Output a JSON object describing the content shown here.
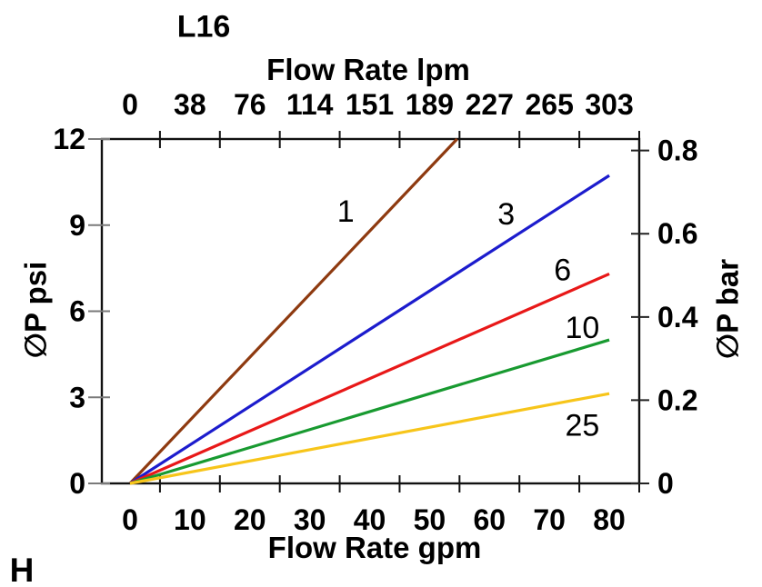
{
  "title": "L16",
  "footer_label": "H",
  "chart_data": {
    "type": "line",
    "title": "L16",
    "grid": false,
    "legend": "inline-labels-on-lines",
    "top_axis": {
      "label": "Flow Rate lpm",
      "tick_labels_lpm": [
        0,
        38,
        76,
        114,
        151,
        189,
        227,
        265,
        303
      ],
      "tick_label_positions_gpm": [
        0,
        10,
        20,
        30,
        40,
        50,
        60,
        70,
        80
      ]
    },
    "bottom_axis": {
      "label": "Flow Rate gpm",
      "tick_labels_gpm": [
        0,
        10,
        20,
        30,
        40,
        50,
        60,
        70,
        80
      ]
    },
    "left_axis": {
      "label": "∅P psi",
      "ticks_psi": [
        0,
        3,
        6,
        9,
        12
      ],
      "range_psi": [
        0,
        12
      ]
    },
    "right_axis": {
      "label": "∅P bar",
      "ticks_bar": [
        0,
        0.2,
        0.4,
        0.6,
        0.8
      ],
      "psi_per_bar": 14.5
    },
    "x_range_gpm": [
      -4.7,
      85
    ],
    "tick_mark_positions_gpm": [
      5,
      15,
      25,
      35,
      45,
      55,
      65,
      75,
      85
    ],
    "series": [
      {
        "name": "1",
        "color": "#8e3a10",
        "points_gpm_psi": [
          [
            0,
            0
          ],
          [
            54.6,
            12
          ]
        ],
        "label_at_gpm_psi": [
          36.0,
          9.5
        ]
      },
      {
        "name": "3",
        "color": "#1c1ccd",
        "points_gpm_psi": [
          [
            0,
            0
          ],
          [
            80,
            10.73
          ]
        ],
        "label_at_gpm_psi": [
          62.8,
          9.4
        ]
      },
      {
        "name": "6",
        "color": "#e81818",
        "points_gpm_psi": [
          [
            0,
            0
          ],
          [
            80,
            7.3
          ]
        ],
        "label_at_gpm_psi": [
          72.2,
          7.45
        ]
      },
      {
        "name": "10",
        "color": "#189a30",
        "points_gpm_psi": [
          [
            0,
            0
          ],
          [
            80,
            5.0
          ]
        ],
        "label_at_gpm_psi": [
          75.5,
          5.45
        ]
      },
      {
        "name": "25",
        "color": "#f7c51a",
        "points_gpm_psi": [
          [
            0,
            0
          ],
          [
            80,
            3.13
          ]
        ],
        "label_at_gpm_psi": [
          75.5,
          2.05
        ]
      }
    ]
  }
}
